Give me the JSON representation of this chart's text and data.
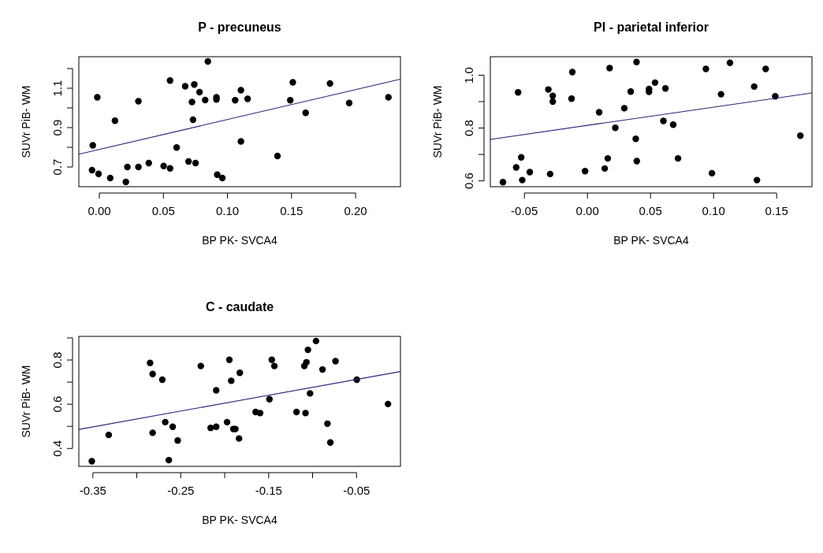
{
  "chart_data": [
    {
      "type": "scatter",
      "title": "P - precuneus",
      "xlabel": "BP PK- SVCA4",
      "ylabel": "SUVr PiB- WM",
      "grid": false,
      "xlim": [
        -0.016,
        0.235
      ],
      "ylim": [
        0.6,
        1.26
      ],
      "xticks": [
        {
          "value": 0,
          "label": "0.00"
        },
        {
          "value": 0.05,
          "label": "0.05"
        },
        {
          "value": 0.1,
          "label": "0.10"
        },
        {
          "value": 0.15,
          "label": "0.15"
        },
        {
          "value": 0.2,
          "label": "0.20"
        }
      ],
      "yticks": [
        0.7,
        {
          "value": 0.8,
          "label": null
        },
        0.9,
        {
          "value": 1.0,
          "label": null
        },
        1.1,
        {
          "value": 1.2,
          "label": null
        }
      ],
      "series": [
        {
          "marker": "circle",
          "color": "#000000",
          "x": [
            -0.0057,
            -0.0016,
            -0.0006,
            -0.0051,
            0.0085,
            0.0122,
            0.0207,
            0.0219,
            0.0305,
            0.0305,
            0.0386,
            0.0502,
            0.0552,
            0.0552,
            0.0603,
            0.067,
            0.0696,
            0.0723,
            0.0741,
            0.0731,
            0.0751,
            0.0782,
            0.0826,
            0.0847,
            0.0914,
            0.0914,
            0.092,
            0.096,
            0.106,
            0.1105,
            0.1105,
            0.1157,
            0.139,
            0.149,
            0.151,
            0.161,
            0.18,
            0.195,
            0.2256
          ],
          "values": [
            0.684,
            1.054,
            0.665,
            0.81,
            0.644,
            0.935,
            0.624,
            0.7,
            1.034,
            0.7,
            0.72,
            0.705,
            0.693,
            1.139,
            0.799,
            1.11,
            0.728,
            1.03,
            1.119,
            0.94,
            0.72,
            1.08,
            1.04,
            1.236,
            1.054,
            1.043,
            0.661,
            0.644,
            1.039,
            1.09,
            0.83,
            1.046,
            0.756,
            1.039,
            1.13,
            0.975,
            1.124,
            1.025,
            1.054
          ]
        },
        {
          "type": "line",
          "color": "#23237a",
          "x": [
            -0.016,
            0.235
          ],
          "values": [
            0.765,
            1.146
          ]
        }
      ]
    },
    {
      "type": "scatter",
      "title": "PI - parietal inferior",
      "xlabel": "BP PK- SVCA4",
      "ylabel": "SUVr PiB- WM",
      "grid": false,
      "xlim": [
        -0.077,
        0.178
      ],
      "ylim": [
        0.578,
        1.07
      ],
      "xticks": [
        {
          "value": -0.05,
          "label": "-0.05"
        },
        {
          "value": 0,
          "label": "0.00"
        },
        {
          "value": 0.05,
          "label": "0.05"
        },
        {
          "value": 0.1,
          "label": "0.10"
        },
        {
          "value": 0.15,
          "label": "0.15"
        }
      ],
      "yticks": [
        0.6,
        {
          "value": 0.7,
          "label": null
        },
        0.8,
        {
          "value": 0.9,
          "label": null
        },
        {
          "value": 1.0,
          "label": "1.0"
        }
      ],
      "series": [
        {
          "marker": "circle",
          "color": "#000000",
          "x": [
            -0.067,
            -0.055,
            -0.0565,
            -0.0525,
            -0.0517,
            -0.0457,
            -0.031,
            -0.0296,
            -0.0275,
            -0.0275,
            -0.0126,
            -0.012,
            -0.0019,
            0.0093,
            0.0137,
            0.0161,
            0.0176,
            0.0221,
            0.0292,
            0.0343,
            0.0383,
            0.0389,
            0.0391,
            0.0488,
            0.0488,
            0.0536,
            0.0602,
            0.0618,
            0.068,
            0.0718,
            0.0939,
            0.0987,
            0.1059,
            0.113,
            0.1322,
            0.1344,
            0.1413,
            0.1489,
            0.1688
          ],
          "values": [
            0.595,
            0.935,
            0.651,
            0.689,
            0.603,
            0.633,
            0.946,
            0.626,
            0.922,
            0.9,
            0.911,
            1.012,
            0.637,
            0.86,
            0.647,
            0.685,
            1.027,
            0.801,
            0.875,
            0.938,
            0.759,
            1.05,
            0.675,
            0.948,
            0.937,
            0.972,
            0.827,
            0.95,
            0.813,
            0.685,
            1.024,
            0.629,
            0.928,
            1.047,
            0.957,
            0.603,
            1.024,
            0.92,
            0.771
          ]
        },
        {
          "type": "line",
          "color": "#23237a",
          "x": [
            -0.077,
            0.178
          ],
          "values": [
            0.757,
            0.933
          ]
        }
      ]
    },
    {
      "type": "scatter",
      "title": "C - caudate",
      "xlabel": "BP PK- SVCA4",
      "ylabel": "SUVr PiB- WM",
      "grid": false,
      "xlim": [
        -0.366,
        0
      ],
      "ylim": [
        0.319,
        0.907
      ],
      "xticks": [
        -0.35,
        {
          "value": -0.3,
          "label": null
        },
        -0.25,
        {
          "value": -0.2,
          "label": null
        },
        -0.15,
        {
          "value": -0.1,
          "label": null
        },
        -0.05
      ],
      "yticks": [
        0.4,
        {
          "value": 0.5,
          "label": null
        },
        0.6,
        {
          "value": 0.7,
          "label": null
        },
        0.8,
        {
          "value": 0.9,
          "label": null
        }
      ],
      "series": [
        {
          "marker": "circle",
          "color": "#000000",
          "x": [
            -0.3512,
            -0.332,
            -0.2849,
            -0.282,
            -0.282,
            -0.271,
            -0.2677,
            -0.2636,
            -0.2592,
            -0.2535,
            -0.2272,
            -0.216,
            -0.2097,
            -0.2097,
            -0.1973,
            -0.1947,
            -0.1926,
            -0.1902,
            -0.1879,
            -0.1837,
            -0.1828,
            -0.1648,
            -0.1597,
            -0.1491,
            -0.1464,
            -0.1435,
            -0.1183,
            -0.1094,
            -0.108,
            -0.107,
            -0.1053,
            -0.1029,
            -0.0961,
            -0.0887,
            -0.0831,
            -0.0798,
            -0.0739,
            -0.0497,
            -0.0142
          ],
          "values": [
            0.342,
            0.461,
            0.787,
            0.737,
            0.471,
            0.711,
            0.519,
            0.347,
            0.498,
            0.436,
            0.773,
            0.493,
            0.663,
            0.498,
            0.519,
            0.801,
            0.706,
            0.488,
            0.488,
            0.445,
            0.742,
            0.565,
            0.56,
            0.623,
            0.801,
            0.773,
            0.565,
            0.773,
            0.56,
            0.79,
            0.846,
            0.649,
            0.886,
            0.757,
            0.512,
            0.427,
            0.795,
            0.711,
            0.601
          ]
        },
        {
          "type": "line",
          "color": "#23237a",
          "x": [
            -0.366,
            0
          ],
          "values": [
            0.486,
            0.748
          ]
        }
      ]
    }
  ]
}
